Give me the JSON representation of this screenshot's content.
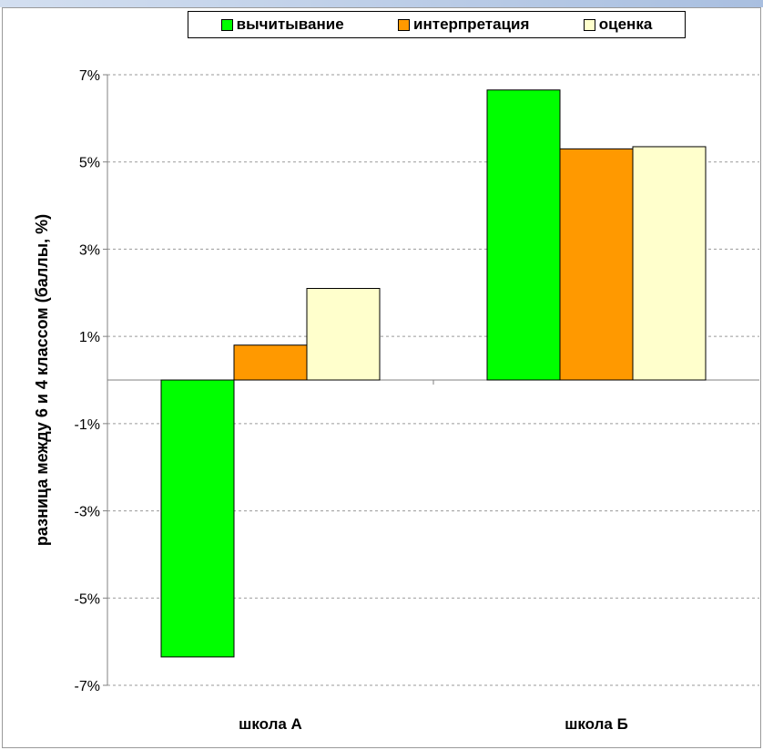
{
  "chart_data": {
    "type": "bar",
    "ylabel": "разница между 6 и 4 классом (баллы, %)",
    "xlabel": "",
    "categories": [
      "школа А",
      "школа Б"
    ],
    "series": [
      {
        "name": "вычитывание",
        "color": "#00ff00",
        "values": [
          -6.35,
          6.65
        ]
      },
      {
        "name": "интерпретация",
        "color": "#ff9900",
        "values": [
          0.8,
          5.3
        ]
      },
      {
        "name": "оценка",
        "color": "#ffffcc",
        "values": [
          2.1,
          5.35
        ]
      }
    ],
    "yticks": [
      {
        "value": 7,
        "label": "7%"
      },
      {
        "value": 5,
        "label": "5%"
      },
      {
        "value": 3,
        "label": "3%"
      },
      {
        "value": 1,
        "label": "1%"
      },
      {
        "value": -1,
        "label": "-1%"
      },
      {
        "value": -3,
        "label": "-3%"
      },
      {
        "value": -5,
        "label": "-5%"
      },
      {
        "value": -7,
        "label": "-7%"
      }
    ],
    "ylim": [
      -7,
      7
    ],
    "grid": true,
    "legend_position": "top"
  }
}
